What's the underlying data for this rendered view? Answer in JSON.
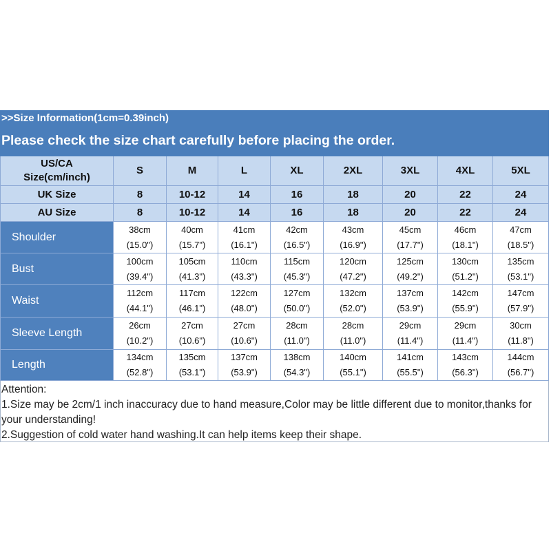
{
  "header": {
    "title": ">>Size Information(1cm=0.39inch)",
    "subtitle": "Please check the size chart carefully before placing the order."
  },
  "table": {
    "size_header": {
      "label": [
        "US/CA",
        "Size(cm/inch)"
      ],
      "sizes": [
        "S",
        "M",
        "L",
        "XL",
        "2XL",
        "3XL",
        "4XL",
        "5XL"
      ]
    },
    "uk": {
      "label": "UK Size",
      "sizes": [
        "8",
        "10-12",
        "14",
        "16",
        "18",
        "20",
        "22",
        "24"
      ]
    },
    "au": {
      "label": "AU Size",
      "sizes": [
        "8",
        "10-12",
        "14",
        "16",
        "18",
        "20",
        "22",
        "24"
      ]
    },
    "rows": [
      {
        "label": "Shoulder",
        "cells": [
          [
            "38cm",
            "(15.0\")"
          ],
          [
            "40cm",
            "(15.7\")"
          ],
          [
            "41cm",
            "(16.1\")"
          ],
          [
            "42cm",
            "(16.5\")"
          ],
          [
            "43cm",
            "(16.9\")"
          ],
          [
            "45cm",
            "(17.7\")"
          ],
          [
            "46cm",
            "(18.1\")"
          ],
          [
            "47cm",
            "(18.5\")"
          ]
        ]
      },
      {
        "label": "Bust",
        "cells": [
          [
            "100cm",
            "(39.4\")"
          ],
          [
            "105cm",
            "(41.3\")"
          ],
          [
            "110cm",
            "(43.3\")"
          ],
          [
            "115cm",
            "(45.3\")"
          ],
          [
            "120cm",
            "(47.2\")"
          ],
          [
            "125cm",
            "(49.2\")"
          ],
          [
            "130cm",
            "(51.2\")"
          ],
          [
            "135cm",
            "(53.1\")"
          ]
        ]
      },
      {
        "label": "Waist",
        "cells": [
          [
            "112cm",
            "(44.1\")"
          ],
          [
            "117cm",
            "(46.1\")"
          ],
          [
            "122cm",
            "(48.0\")"
          ],
          [
            "127cm",
            "(50.0\")"
          ],
          [
            "132cm",
            "(52.0\")"
          ],
          [
            "137cm",
            "(53.9\")"
          ],
          [
            "142cm",
            "(55.9\")"
          ],
          [
            "147cm",
            "(57.9\")"
          ]
        ]
      },
      {
        "label": "Sleeve Length",
        "cells": [
          [
            "26cm",
            "(10.2\")"
          ],
          [
            "27cm",
            "(10.6\")"
          ],
          [
            "27cm",
            "(10.6\")"
          ],
          [
            "28cm",
            "(11.0\")"
          ],
          [
            "28cm",
            "(11.0\")"
          ],
          [
            "29cm",
            "(11.4\")"
          ],
          [
            "29cm",
            "(11.4\")"
          ],
          [
            "30cm",
            "(11.8\")"
          ]
        ]
      },
      {
        "label": "Length",
        "cells": [
          [
            "134cm",
            "(52.8\")"
          ],
          [
            "135cm",
            "(53.1\")"
          ],
          [
            "137cm",
            "(53.9\")"
          ],
          [
            "138cm",
            "(54.3\")"
          ],
          [
            "140cm",
            "(55.1\")"
          ],
          [
            "141cm",
            "(55.5\")"
          ],
          [
            "143cm",
            "(56.3\")"
          ],
          [
            "144cm",
            "(56.7\")"
          ]
        ]
      }
    ]
  },
  "notes": [
    "Attention:",
    "1.Size may be 2cm/1 inch inaccuracy due to hand measure,Color may be little different due to monitor,thanks for your understanding!",
    "2.Suggestion of cold water hand washing.It can help items keep their shape."
  ]
}
